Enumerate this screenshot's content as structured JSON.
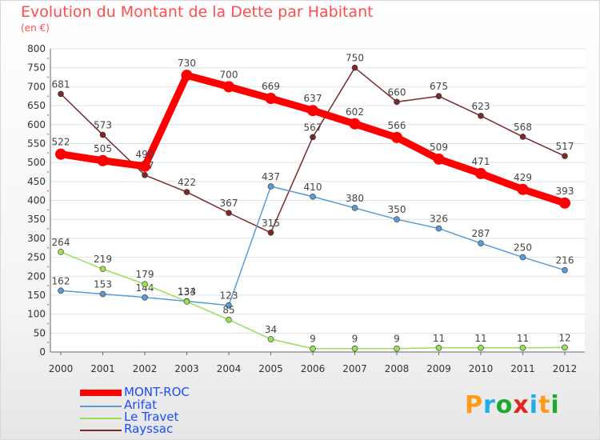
{
  "title": "Evolution du Montant de la Dette par Habitant",
  "subtitle": "(en €)",
  "brand": {
    "letters": [
      "P",
      "r",
      "o",
      "x",
      "i",
      "t",
      "i"
    ],
    "colors": [
      "#ff9a1a",
      "#22aaee",
      "#1ea82e",
      "#e0261b",
      "#22aaee",
      "#ff9a1a",
      "#1ea82e"
    ]
  },
  "chart_data": {
    "type": "line",
    "title": "Evolution du Montant de la Dette par Habitant",
    "ylabel": "(en €)",
    "xlabel": "",
    "ylim": [
      0,
      800
    ],
    "yticks": [
      0,
      50,
      100,
      150,
      200,
      250,
      300,
      350,
      400,
      450,
      500,
      550,
      600,
      650,
      700,
      750,
      800
    ],
    "grid": "horizontal",
    "legend": "bottom-left",
    "x": [
      "2000",
      "2001",
      "2002",
      "2003",
      "2004",
      "2005",
      "2006",
      "2007",
      "2008",
      "2009",
      "2010",
      "2011",
      "2012"
    ],
    "series": [
      {
        "name": "MONT-ROC",
        "color": "#ff0000",
        "values": [
          522,
          505,
          490,
          730,
          700,
          669,
          637,
          602,
          566,
          509,
          471,
          429,
          393
        ]
      },
      {
        "name": "Arifat",
        "color": "#5b9bd5",
        "values": [
          162,
          153,
          144,
          134,
          123,
          437,
          410,
          380,
          350,
          326,
          287,
          250,
          216
        ]
      },
      {
        "name": "Le Travet",
        "color": "#99e05a",
        "values": [
          264,
          219,
          179,
          133,
          85,
          34,
          9,
          9,
          9,
          11,
          11,
          11,
          12
        ]
      },
      {
        "name": "Rayssac",
        "color": "#7a2a2a",
        "values": [
          681,
          573,
          467,
          422,
          367,
          315,
          567,
          750,
          660,
          675,
          623,
          568,
          517
        ]
      }
    ]
  }
}
